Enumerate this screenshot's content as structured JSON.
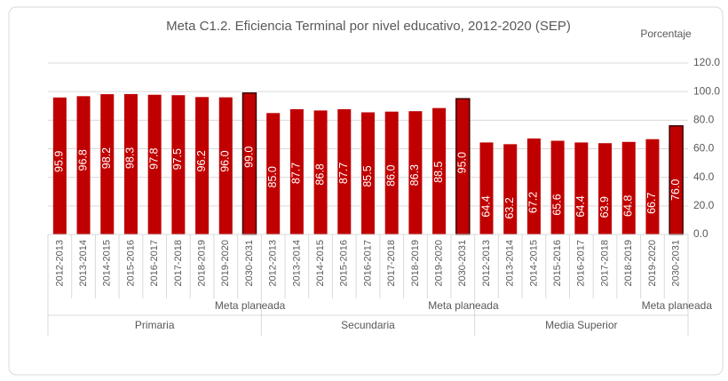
{
  "chart_data": {
    "type": "bar",
    "title": "Meta C1.2. Eficiencia Terminal por nivel educativo, 2012-2020 (SEP)",
    "y_label": "Porcentaje",
    "color": "#c00000",
    "target_outline": "#3a0000",
    "grid": true,
    "ylim": [
      0,
      120
    ],
    "yticks": [
      {
        "value": 0,
        "label": "0.0"
      },
      {
        "value": 20,
        "label": "20.0"
      },
      {
        "value": 40,
        "label": "40.0"
      },
      {
        "value": 60,
        "label": "60.0"
      },
      {
        "value": 80,
        "label": "80.0"
      },
      {
        "value": 100,
        "label": "100.0"
      },
      {
        "value": 120,
        "label": "120.0"
      }
    ],
    "groups": [
      {
        "name": "Primaria",
        "target_label": "Meta planeada",
        "categories": [
          "2012-2013",
          "2013-2014",
          "2014-2015",
          "2015-2016",
          "2016-2017",
          "2017-2018",
          "2018-2019",
          "2019-2020",
          "2030-2031"
        ],
        "values": [
          95.9,
          96.8,
          98.2,
          98.3,
          97.8,
          97.5,
          96.2,
          96.0,
          99.0
        ],
        "value_labels": [
          "95.9",
          "96.8",
          "98.2",
          "98.3",
          "97.8",
          "97.5",
          "96.2",
          "96.0",
          "99.0"
        ]
      },
      {
        "name": "Secundaria",
        "target_label": "Meta planeada",
        "categories": [
          "2012-2013",
          "2013-2014",
          "2014-2015",
          "2015-2016",
          "2016-2017",
          "2017-2018",
          "2018-2019",
          "2019-2020",
          "2030-2031"
        ],
        "values": [
          85.0,
          87.7,
          86.8,
          87.7,
          85.5,
          86.0,
          86.3,
          88.5,
          95.0
        ],
        "value_labels": [
          "85.0",
          "87.7",
          "86.8",
          "87.7",
          "85.5",
          "86.0",
          "86.3",
          "88.5",
          "95.0"
        ]
      },
      {
        "name": "Media Superior",
        "target_label": "Meta planeada",
        "categories": [
          "2012-2013",
          "2013-2014",
          "2014-2015",
          "2015-2016",
          "2016-2017",
          "2017-2018",
          "2018-2019",
          "2019-2020",
          "2030-2031"
        ],
        "values": [
          64.4,
          63.2,
          67.2,
          65.6,
          64.4,
          63.9,
          64.8,
          66.7,
          76.0
        ],
        "value_labels": [
          "64.4",
          "63.2",
          "67.2",
          "65.6",
          "64.4",
          "63.9",
          "64.8",
          "66.7",
          "76.0"
        ]
      }
    ]
  }
}
